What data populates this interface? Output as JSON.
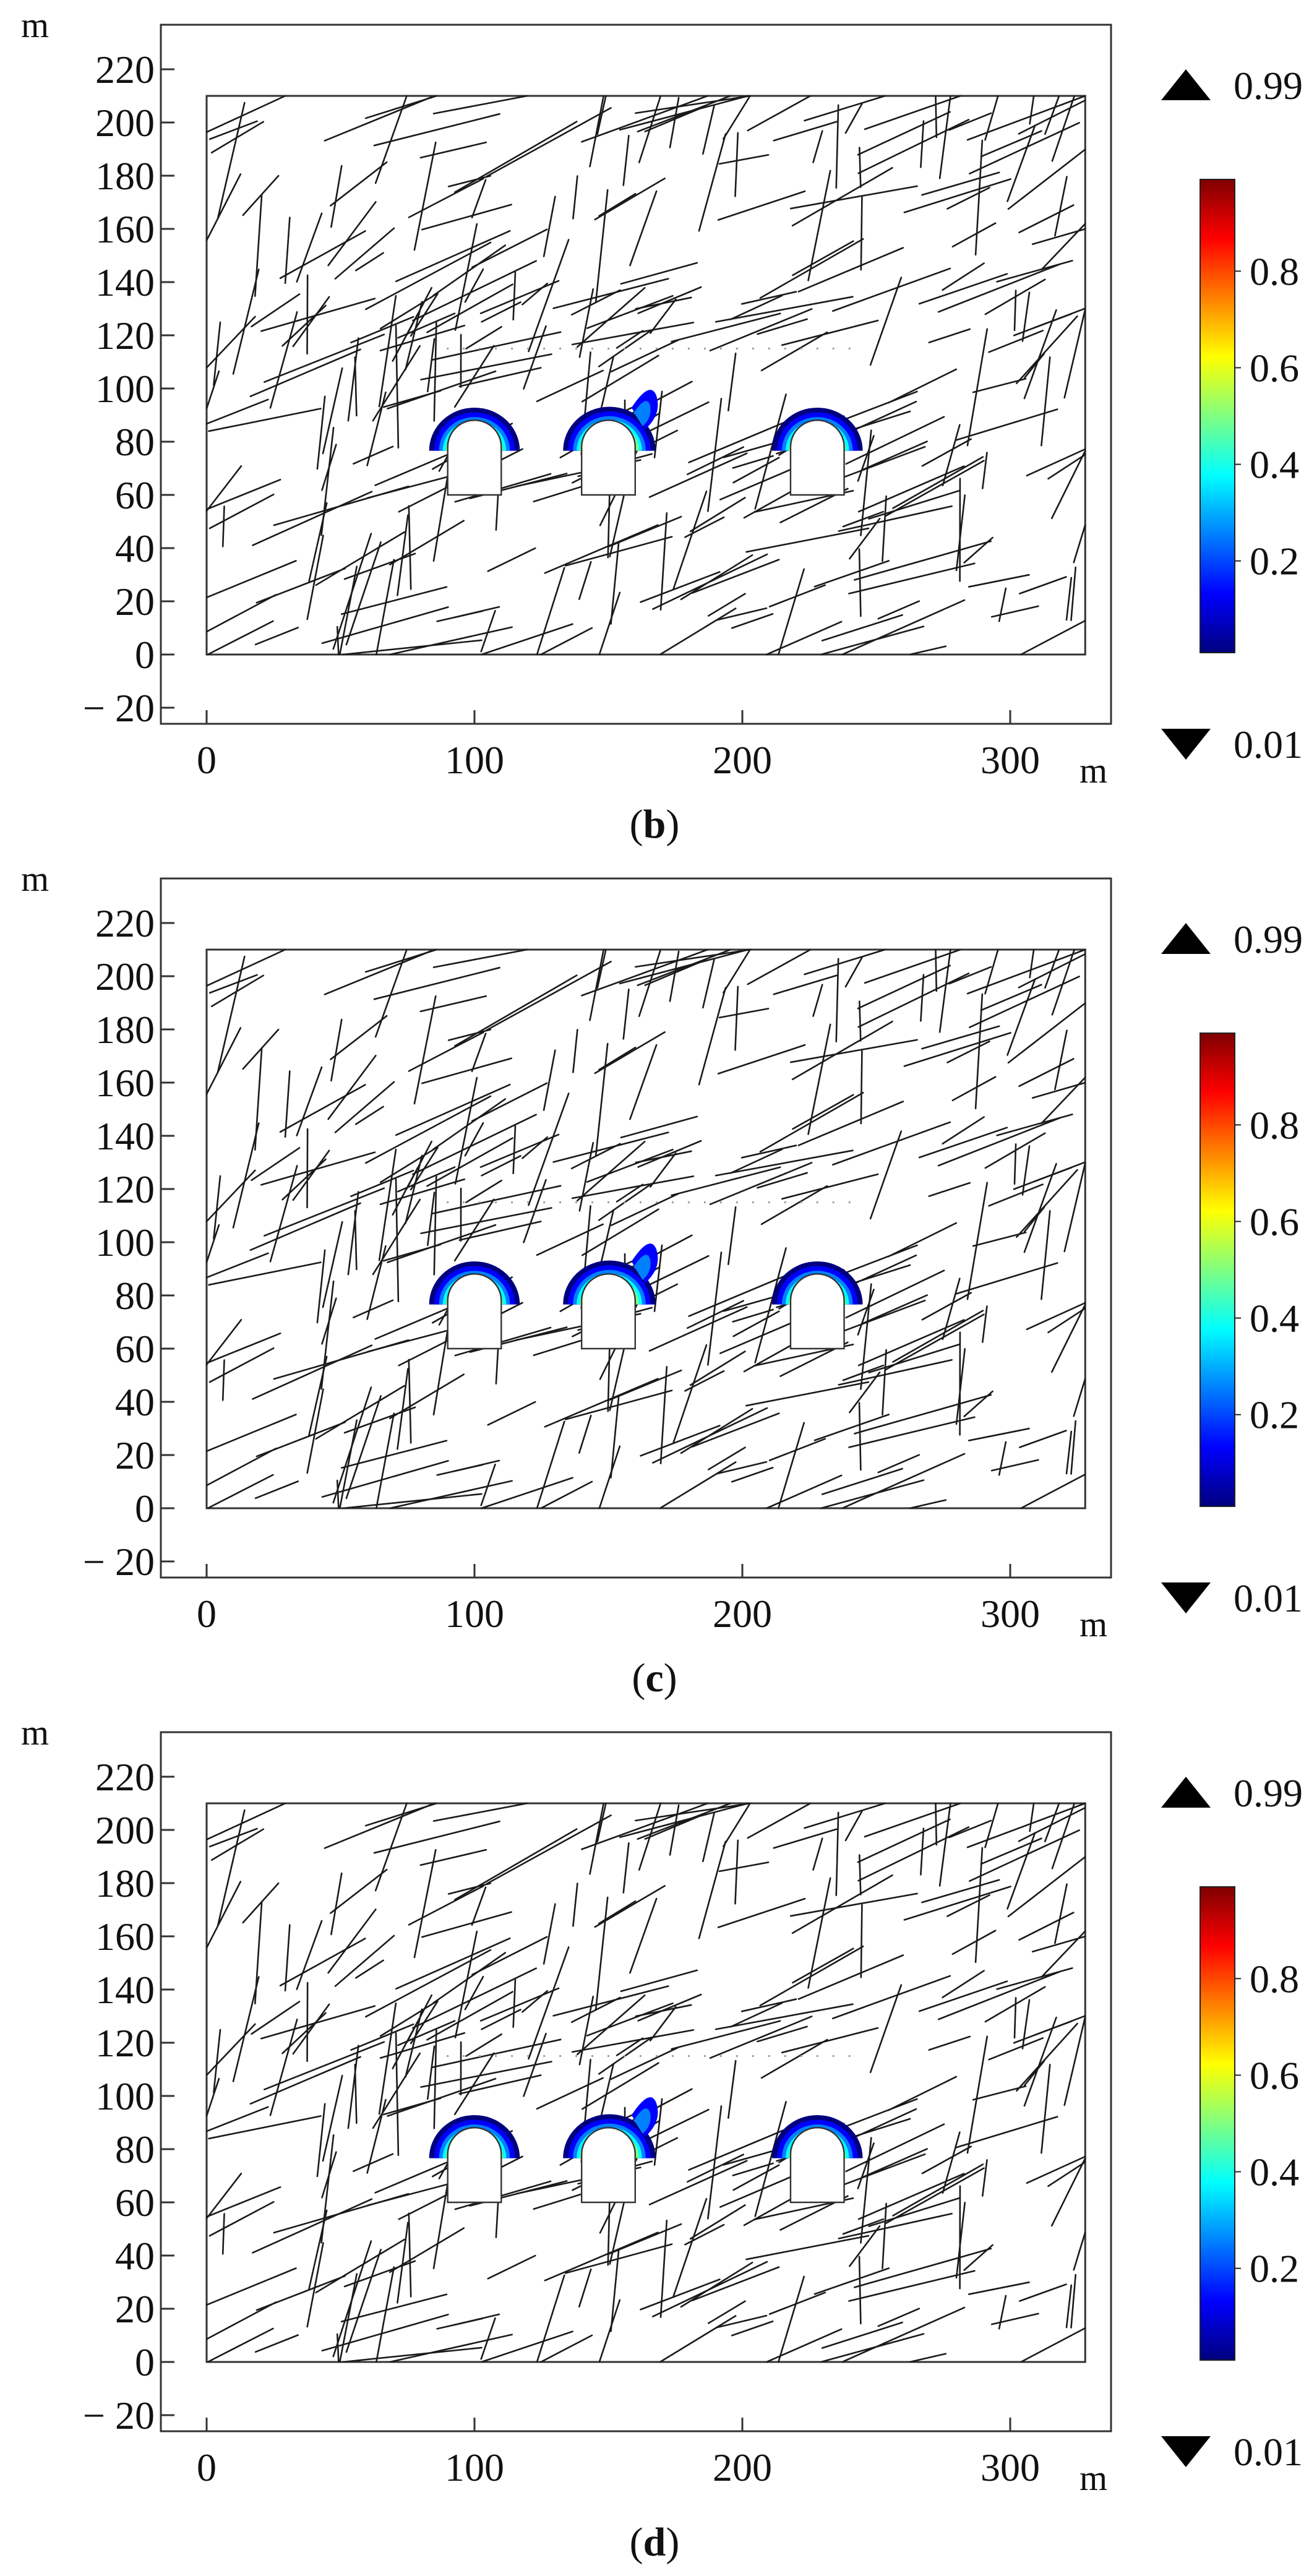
{
  "colors": {
    "fracture": "#1a1a1a",
    "frame": "#333333",
    "colormap": [
      "#00007f",
      "#0000ff",
      "#0080ff",
      "#00ffff",
      "#80ff80",
      "#ffff00",
      "#ff8000",
      "#ff0000",
      "#7f0000"
    ]
  },
  "panels": [
    {
      "label": "b"
    },
    {
      "label": "c"
    },
    {
      "label": "d"
    }
  ],
  "chart_data": [
    {
      "type": "contour",
      "panel": "b",
      "xlabel": "m",
      "ylabel": "m",
      "xlim": [
        -8,
        340
      ],
      "ylim": [
        -27,
        228
      ],
      "xticks": [
        0,
        100,
        200,
        300
      ],
      "yticks": [
        -20,
        0,
        20,
        40,
        60,
        80,
        100,
        120,
        140,
        160,
        180,
        200,
        220
      ],
      "domain": {
        "x": [
          0,
          328
        ],
        "y": [
          0,
          210
        ]
      },
      "tunnels": [
        {
          "x": [
            90,
            110
          ],
          "wall_top": 78,
          "floor": 60,
          "crown": 90
        },
        {
          "x": [
            140,
            160
          ],
          "wall_top": 78,
          "floor": 60,
          "crown": 90
        },
        {
          "x": [
            218,
            238
          ],
          "wall_top": 78,
          "floor": 60,
          "crown": 90
        }
      ],
      "colorbar": {
        "max_label": "0.99",
        "min_label": "0.01",
        "ticks": [
          "0.8",
          "0.6",
          "0.4",
          "0.2"
        ],
        "range": [
          0.01,
          0.99
        ]
      }
    },
    {
      "type": "contour",
      "panel": "c",
      "xlabel": "m",
      "ylabel": "m",
      "xlim": [
        -8,
        340
      ],
      "ylim": [
        -27,
        228
      ],
      "xticks": [
        0,
        100,
        200,
        300
      ],
      "yticks": [
        -20,
        0,
        20,
        40,
        60,
        80,
        100,
        120,
        140,
        160,
        180,
        200,
        220
      ],
      "domain": {
        "x": [
          0,
          328
        ],
        "y": [
          0,
          210
        ]
      },
      "tunnels": [
        {
          "x": [
            90,
            110
          ],
          "wall_top": 78,
          "floor": 60,
          "crown": 90
        },
        {
          "x": [
            140,
            160
          ],
          "wall_top": 78,
          "floor": 60,
          "crown": 90
        },
        {
          "x": [
            218,
            238
          ],
          "wall_top": 78,
          "floor": 60,
          "crown": 90
        }
      ],
      "colorbar": {
        "max_label": "0.99",
        "min_label": "0.01",
        "ticks": [
          "0.8",
          "0.6",
          "0.4",
          "0.2"
        ],
        "range": [
          0.01,
          0.99
        ]
      }
    },
    {
      "type": "contour",
      "panel": "d",
      "xlabel": "m",
      "ylabel": "m",
      "xlim": [
        -8,
        340
      ],
      "ylim": [
        -27,
        228
      ],
      "xticks": [
        0,
        100,
        200,
        300
      ],
      "yticks": [
        -20,
        0,
        20,
        40,
        60,
        80,
        100,
        120,
        140,
        160,
        180,
        200,
        220
      ],
      "domain": {
        "x": [
          0,
          328
        ],
        "y": [
          0,
          210
        ]
      },
      "tunnels": [
        {
          "x": [
            90,
            110
          ],
          "wall_top": 78,
          "floor": 60,
          "crown": 90
        },
        {
          "x": [
            140,
            160
          ],
          "wall_top": 78,
          "floor": 60,
          "crown": 90
        },
        {
          "x": [
            218,
            238
          ],
          "wall_top": 78,
          "floor": 60,
          "crown": 90
        }
      ],
      "colorbar": {
        "max_label": "0.99",
        "min_label": "0.01",
        "ticks": [
          "0.8",
          "0.6",
          "0.4",
          "0.2"
        ],
        "range": [
          0.01,
          0.99
        ]
      }
    }
  ]
}
